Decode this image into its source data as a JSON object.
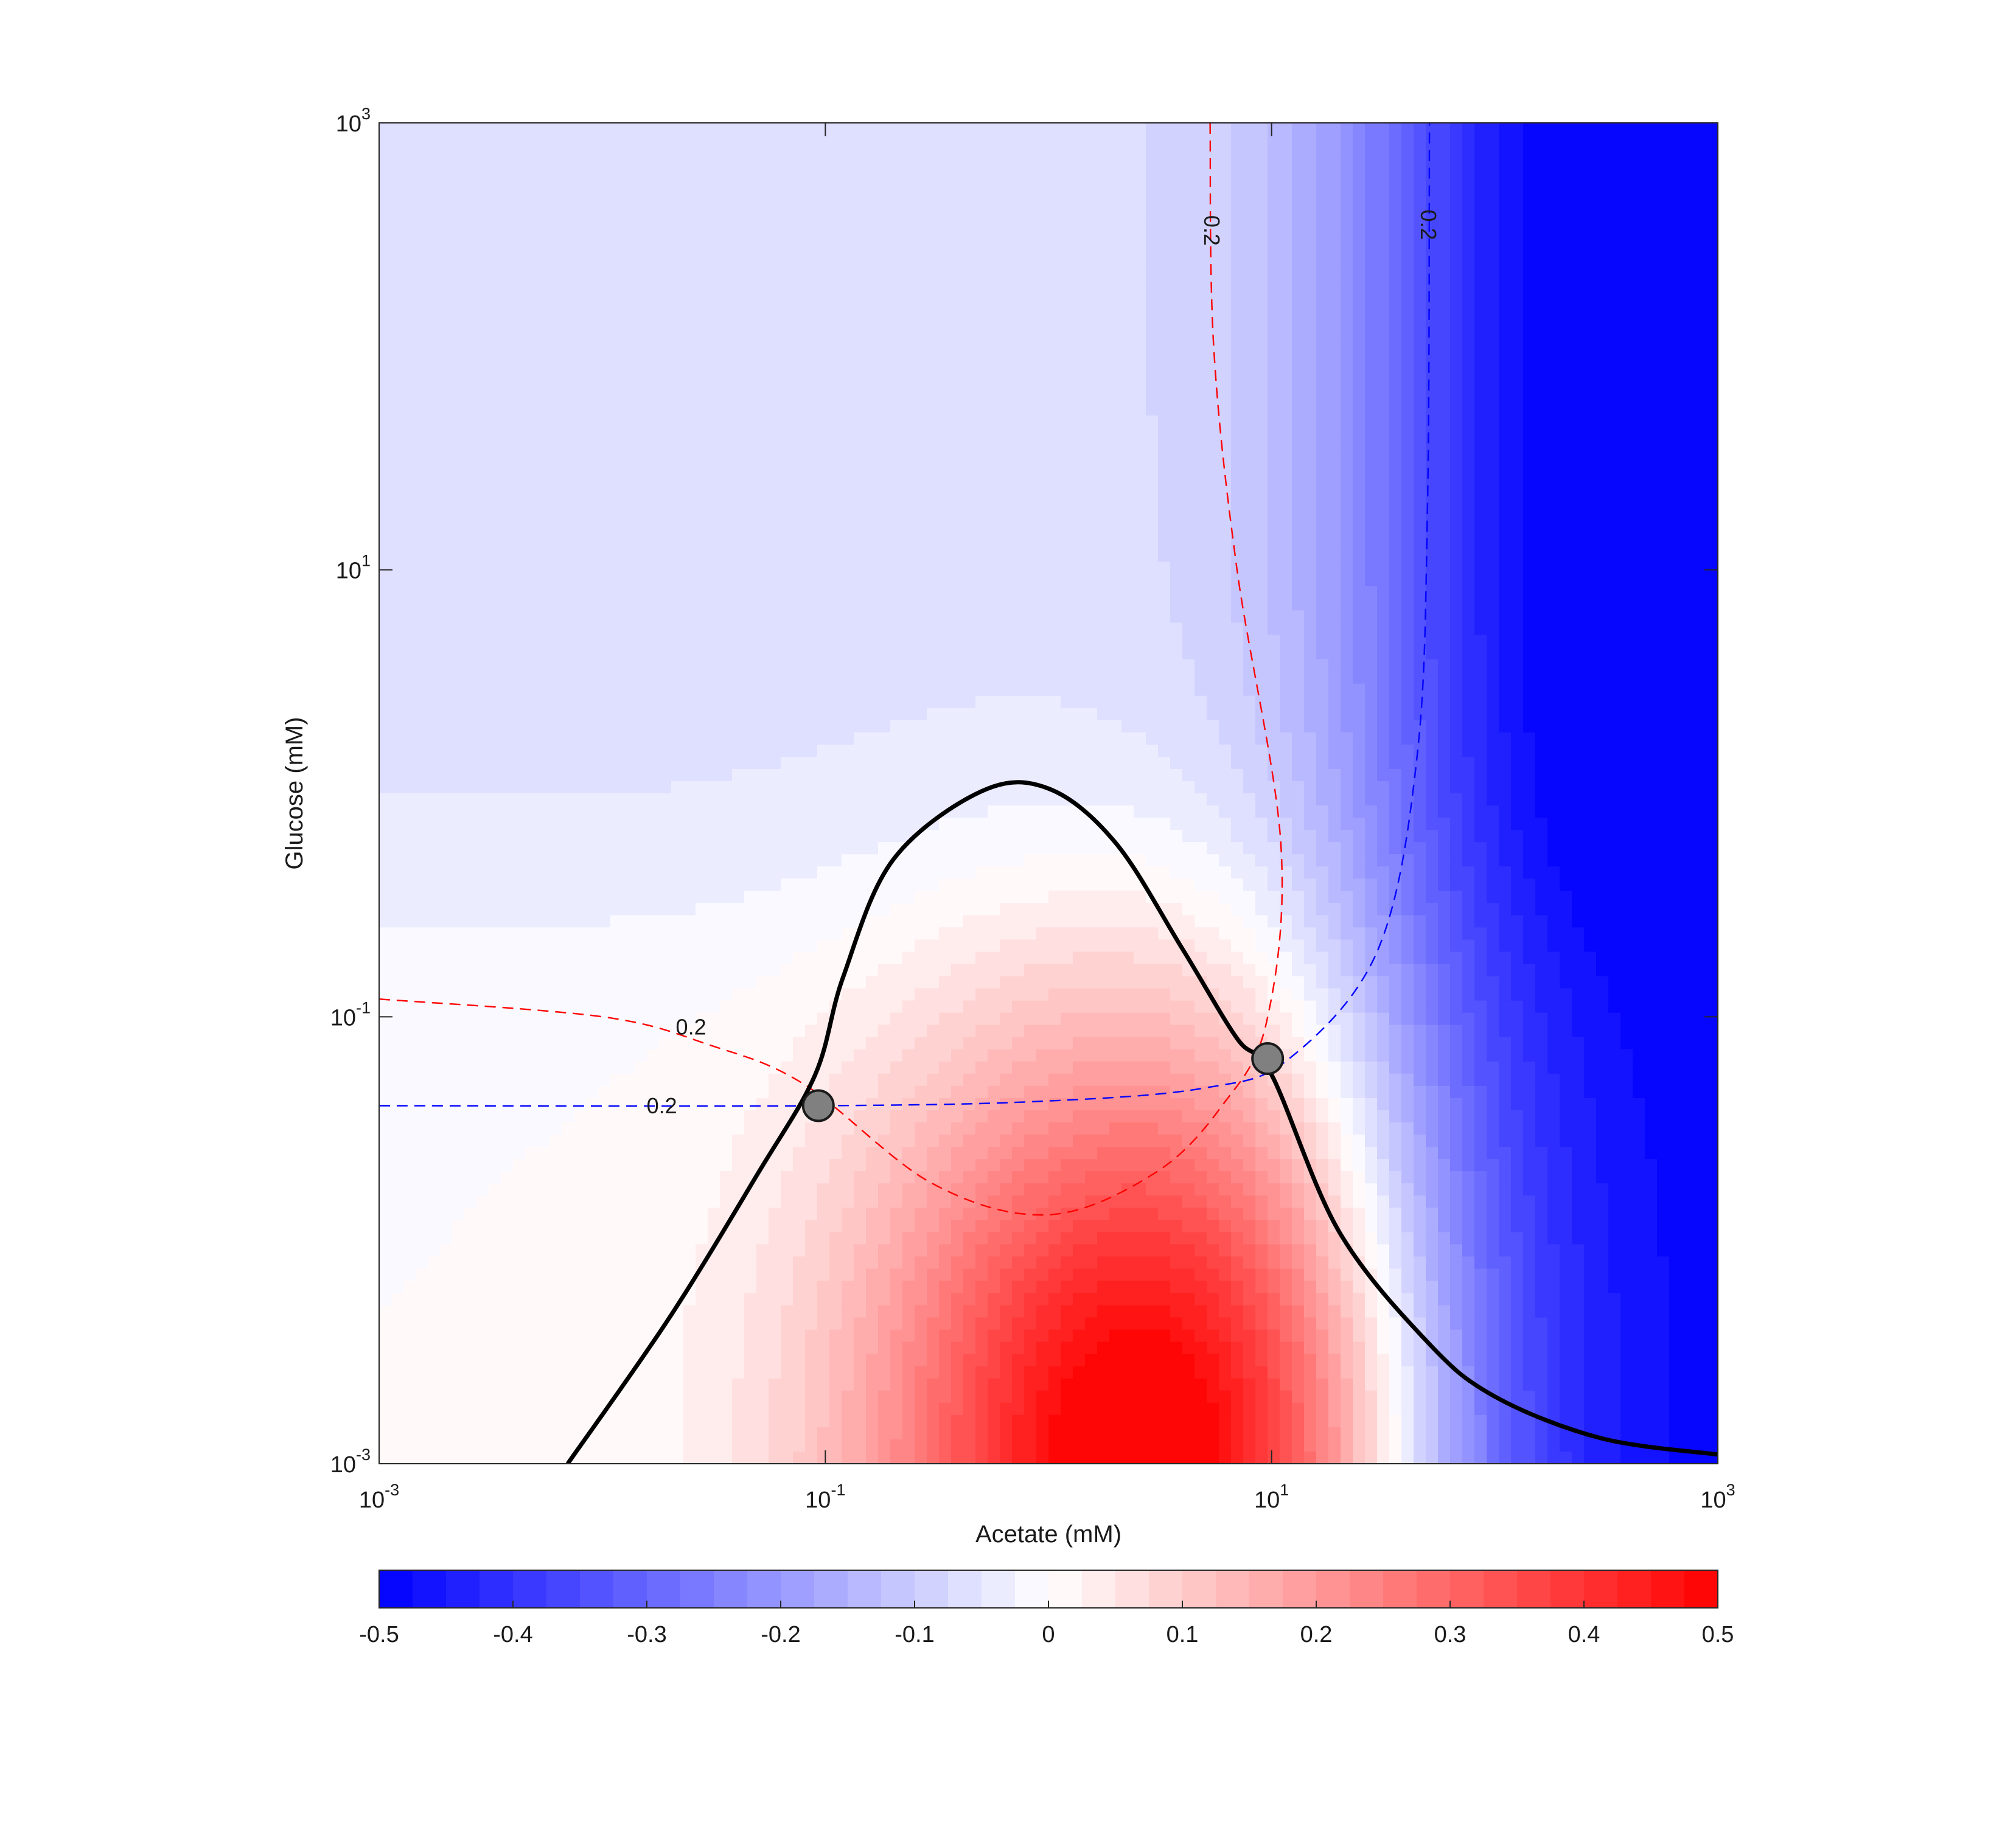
{
  "chart_data": {
    "type": "heatmap",
    "x_axis": {
      "label": "Acetate (mM)",
      "scale": "log",
      "range": [
        0.001,
        1000
      ],
      "tick_values": [
        0.001,
        0.1,
        10,
        1000
      ],
      "tick_labels": [
        {
          "base": "10",
          "exp": "-3"
        },
        {
          "base": "10",
          "exp": "-1"
        },
        {
          "base": "10",
          "exp": "1"
        },
        {
          "base": "10",
          "exp": "3"
        }
      ]
    },
    "y_axis": {
      "label": "Glucose (mM)",
      "scale": "log",
      "range": [
        0.001,
        1000
      ],
      "tick_values": [
        0.001,
        0.1,
        10,
        1000
      ],
      "tick_labels": [
        {
          "base": "10",
          "exp": "-3"
        },
        {
          "base": "10",
          "exp": "-1"
        },
        {
          "base": "10",
          "exp": "1"
        },
        {
          "base": "10",
          "exp": "3"
        }
      ]
    },
    "colorbar": {
      "orientation": "horizontal",
      "placement": "bottom",
      "range": [
        -0.5,
        0.5
      ],
      "levels": 40,
      "colormap": [
        "#0000ff",
        "#ffffff",
        "#ff0000"
      ],
      "tick_values": [
        -0.5,
        -0.4,
        -0.3,
        -0.2,
        -0.1,
        0,
        0.1,
        0.2,
        0.3,
        0.4,
        0.5
      ],
      "tick_labels": [
        "-0.5",
        "-0.4",
        "-0.3",
        "-0.2",
        "-0.1",
        "0",
        "0.1",
        "0.2",
        "0.3",
        "0.4",
        "0.5"
      ]
    },
    "zero_contour": {
      "color": "#000000",
      "points": [
        [
          0.007,
          0.001
        ],
        [
          0.02,
          0.0045
        ],
        [
          0.05,
          0.02
        ],
        [
          0.09,
          0.055
        ],
        [
          0.12,
          0.15
        ],
        [
          0.2,
          0.5
        ],
        [
          0.5,
          1.02
        ],
        [
          1.0,
          1.05
        ],
        [
          2.0,
          0.6
        ],
        [
          4.0,
          0.2
        ],
        [
          7.0,
          0.08
        ],
        [
          10.0,
          0.055
        ],
        [
          20.0,
          0.011
        ],
        [
          50.0,
          0.0035
        ],
        [
          100.0,
          0.002
        ],
        [
          300.0,
          0.0013
        ],
        [
          1000.0,
          0.0011
        ]
      ]
    },
    "contours": [
      {
        "color": "#ff0000",
        "style": "dashed",
        "label": "0.2",
        "points": [
          [
            0.001,
            0.12
          ],
          [
            0.01,
            0.1
          ],
          [
            0.03,
            0.075
          ],
          [
            0.08,
            0.05
          ],
          [
            0.3,
            0.018
          ],
          [
            1.0,
            0.013
          ],
          [
            3.0,
            0.02
          ],
          [
            6.0,
            0.04
          ],
          [
            9.5,
            0.095
          ],
          [
            11.0,
            0.6
          ],
          [
            7.0,
            10
          ],
          [
            5.5,
            100
          ],
          [
            5.3,
            1000
          ]
        ]
      },
      {
        "color": "#0000ff",
        "style": "dashed",
        "label": "0.2",
        "points": [
          [
            0.001,
            0.04
          ],
          [
            0.1,
            0.04
          ],
          [
            1.0,
            0.042
          ],
          [
            5.0,
            0.048
          ],
          [
            12.0,
            0.065
          ],
          [
            30.0,
            0.2
          ],
          [
            45.0,
            1.5
          ],
          [
            50.0,
            20
          ],
          [
            51.0,
            1000
          ]
        ]
      }
    ],
    "contour_labels": [
      {
        "text": "0.2",
        "series": "red",
        "x": 0.025,
        "y": 0.09,
        "rotation": 0
      },
      {
        "text": "0.2",
        "series": "blue",
        "x": 0.0185,
        "y": 0.04,
        "rotation": 0
      },
      {
        "text": "0.2",
        "series": "red",
        "x": 5.4,
        "y": 330,
        "rotation": 90
      },
      {
        "text": "0.2",
        "series": "blue",
        "x": 50.5,
        "y": 350,
        "rotation": 90
      }
    ],
    "intersection_points": [
      {
        "x": 0.093,
        "y": 0.04
      },
      {
        "x": 9.6,
        "y": 0.065
      }
    ]
  }
}
